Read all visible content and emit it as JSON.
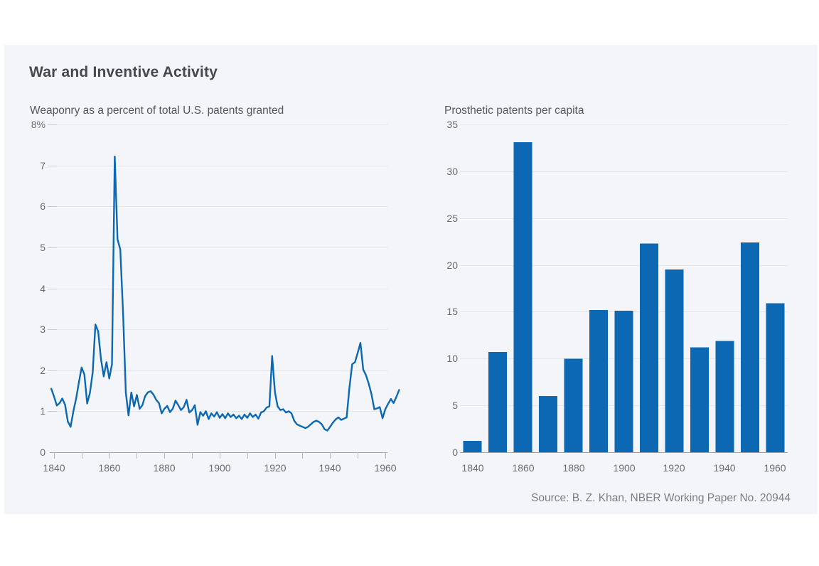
{
  "header": {
    "title": "War and Inventive Activity"
  },
  "footer": {
    "source": "Source: B. Z. Khan, NBER Working Paper No. 20944"
  },
  "colors": {
    "accent_blue": "#0c68b2",
    "card_background": "#f4f5f8",
    "gridline": "#e4e6eb",
    "axis_line": "#9da2aa",
    "tick": "#b4b8c0",
    "label_gray": "#696d74"
  },
  "chart_data": [
    {
      "type": "line",
      "title": "Weaponry as a percent of total U.S. patents granted",
      "x_start_year": 1839,
      "x_end_year": 1960,
      "xlim": [
        1839,
        1960
      ],
      "ylim": [
        0,
        8
      ],
      "grid": "horizontal",
      "legend": "none",
      "y_tick_labels": [
        "0",
        "1",
        "2",
        "3",
        "4",
        "5",
        "6",
        "7",
        "8%"
      ],
      "x_tick_labels": [
        "1840",
        "1860",
        "1880",
        "1900",
        "1920",
        "1940",
        "1960"
      ],
      "values": [
        1.55,
        1.36,
        1.14,
        1.2,
        1.31,
        1.16,
        0.75,
        0.62,
        1.0,
        1.31,
        1.7,
        2.07,
        1.9,
        1.19,
        1.45,
        1.95,
        3.12,
        2.95,
        2.28,
        1.85,
        2.2,
        1.8,
        2.15,
        7.22,
        5.2,
        4.95,
        3.4,
        1.45,
        0.9,
        1.46,
        1.12,
        1.4,
        1.06,
        1.15,
        1.37,
        1.46,
        1.49,
        1.41,
        1.28,
        1.2,
        0.95,
        1.06,
        1.13,
        0.98,
        1.06,
        1.26,
        1.15,
        1.03,
        1.1,
        1.28,
        0.97,
        1.03,
        1.15,
        0.67,
        0.98,
        0.89,
        1.0,
        0.81,
        0.95,
        0.87,
        0.98,
        0.84,
        0.93,
        0.83,
        0.95,
        0.86,
        0.92,
        0.83,
        0.89,
        0.81,
        0.92,
        0.84,
        0.95,
        0.86,
        0.92,
        0.82,
        0.97,
        1.0,
        1.09,
        1.12,
        2.35,
        1.47,
        1.12,
        1.03,
        1.05,
        0.97,
        1.0,
        0.95,
        0.77,
        0.68,
        0.65,
        0.62,
        0.59,
        0.62,
        0.68,
        0.74,
        0.77,
        0.74,
        0.68,
        0.56,
        0.53,
        0.62,
        0.72,
        0.8,
        0.85,
        0.79,
        0.82,
        0.85,
        1.58,
        2.15,
        2.2,
        2.43,
        2.67,
        2.02,
        1.88,
        1.67,
        1.41,
        1.05,
        1.07,
        1.1,
        0.83,
        1.05,
        1.18,
        1.3,
        1.2,
        1.35,
        1.52
      ]
    },
    {
      "type": "bar",
      "title": "Prosthetic patents per capita",
      "ylim": [
        0,
        35
      ],
      "grid": "horizontal",
      "legend": "none",
      "y_tick_labels": [
        "0",
        "5",
        "10",
        "15",
        "20",
        "25",
        "30",
        "35"
      ],
      "x_tick_labels": [
        "1840",
        "1860",
        "1880",
        "1900",
        "1920",
        "1940",
        "1960"
      ],
      "categories": [
        "1840",
        "1850",
        "1860",
        "1870",
        "1880",
        "1890",
        "1900",
        "1910",
        "1920",
        "1930",
        "1940",
        "1950",
        "1960"
      ],
      "values": [
        1.2,
        10.7,
        33.1,
        6.0,
        10.0,
        15.2,
        15.1,
        22.3,
        19.5,
        11.2,
        11.9,
        22.4,
        15.9
      ]
    }
  ]
}
